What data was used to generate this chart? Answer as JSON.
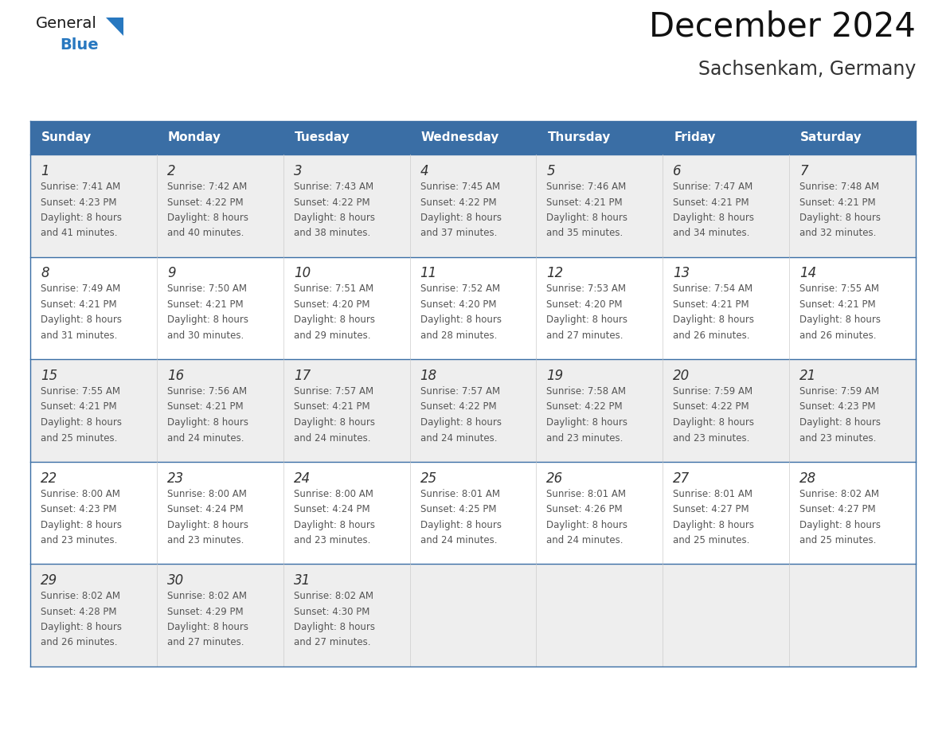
{
  "title": "December 2024",
  "subtitle": "Sachsenkam, Germany",
  "days_of_week": [
    "Sunday",
    "Monday",
    "Tuesday",
    "Wednesday",
    "Thursday",
    "Friday",
    "Saturday"
  ],
  "header_bg_color": "#3a6ea5",
  "header_text_color": "#ffffff",
  "cell_bg_light": "#eeeeee",
  "cell_bg_white": "#ffffff",
  "cell_border_color": "#3a6ea5",
  "day_num_color": "#333333",
  "text_color": "#555555",
  "title_color": "#111111",
  "subtitle_color": "#333333",
  "logo_general_color": "#1a1a1a",
  "logo_blue_color": "#2878c0",
  "logo_triangle_color": "#2878c0",
  "weeks": [
    {
      "days": [
        {
          "date": 1,
          "sunrise": "7:41 AM",
          "sunset": "4:23 PM",
          "daylight_h": "8 hours",
          "daylight_m": "41 minutes."
        },
        {
          "date": 2,
          "sunrise": "7:42 AM",
          "sunset": "4:22 PM",
          "daylight_h": "8 hours",
          "daylight_m": "40 minutes."
        },
        {
          "date": 3,
          "sunrise": "7:43 AM",
          "sunset": "4:22 PM",
          "daylight_h": "8 hours",
          "daylight_m": "38 minutes."
        },
        {
          "date": 4,
          "sunrise": "7:45 AM",
          "sunset": "4:22 PM",
          "daylight_h": "8 hours",
          "daylight_m": "37 minutes."
        },
        {
          "date": 5,
          "sunrise": "7:46 AM",
          "sunset": "4:21 PM",
          "daylight_h": "8 hours",
          "daylight_m": "35 minutes."
        },
        {
          "date": 6,
          "sunrise": "7:47 AM",
          "sunset": "4:21 PM",
          "daylight_h": "8 hours",
          "daylight_m": "34 minutes."
        },
        {
          "date": 7,
          "sunrise": "7:48 AM",
          "sunset": "4:21 PM",
          "daylight_h": "8 hours",
          "daylight_m": "32 minutes."
        }
      ]
    },
    {
      "days": [
        {
          "date": 8,
          "sunrise": "7:49 AM",
          "sunset": "4:21 PM",
          "daylight_h": "8 hours",
          "daylight_m": "31 minutes."
        },
        {
          "date": 9,
          "sunrise": "7:50 AM",
          "sunset": "4:21 PM",
          "daylight_h": "8 hours",
          "daylight_m": "30 minutes."
        },
        {
          "date": 10,
          "sunrise": "7:51 AM",
          "sunset": "4:20 PM",
          "daylight_h": "8 hours",
          "daylight_m": "29 minutes."
        },
        {
          "date": 11,
          "sunrise": "7:52 AM",
          "sunset": "4:20 PM",
          "daylight_h": "8 hours",
          "daylight_m": "28 minutes."
        },
        {
          "date": 12,
          "sunrise": "7:53 AM",
          "sunset": "4:20 PM",
          "daylight_h": "8 hours",
          "daylight_m": "27 minutes."
        },
        {
          "date": 13,
          "sunrise": "7:54 AM",
          "sunset": "4:21 PM",
          "daylight_h": "8 hours",
          "daylight_m": "26 minutes."
        },
        {
          "date": 14,
          "sunrise": "7:55 AM",
          "sunset": "4:21 PM",
          "daylight_h": "8 hours",
          "daylight_m": "26 minutes."
        }
      ]
    },
    {
      "days": [
        {
          "date": 15,
          "sunrise": "7:55 AM",
          "sunset": "4:21 PM",
          "daylight_h": "8 hours",
          "daylight_m": "25 minutes."
        },
        {
          "date": 16,
          "sunrise": "7:56 AM",
          "sunset": "4:21 PM",
          "daylight_h": "8 hours",
          "daylight_m": "24 minutes."
        },
        {
          "date": 17,
          "sunrise": "7:57 AM",
          "sunset": "4:21 PM",
          "daylight_h": "8 hours",
          "daylight_m": "24 minutes."
        },
        {
          "date": 18,
          "sunrise": "7:57 AM",
          "sunset": "4:22 PM",
          "daylight_h": "8 hours",
          "daylight_m": "24 minutes."
        },
        {
          "date": 19,
          "sunrise": "7:58 AM",
          "sunset": "4:22 PM",
          "daylight_h": "8 hours",
          "daylight_m": "23 minutes."
        },
        {
          "date": 20,
          "sunrise": "7:59 AM",
          "sunset": "4:22 PM",
          "daylight_h": "8 hours",
          "daylight_m": "23 minutes."
        },
        {
          "date": 21,
          "sunrise": "7:59 AM",
          "sunset": "4:23 PM",
          "daylight_h": "8 hours",
          "daylight_m": "23 minutes."
        }
      ]
    },
    {
      "days": [
        {
          "date": 22,
          "sunrise": "8:00 AM",
          "sunset": "4:23 PM",
          "daylight_h": "8 hours",
          "daylight_m": "23 minutes."
        },
        {
          "date": 23,
          "sunrise": "8:00 AM",
          "sunset": "4:24 PM",
          "daylight_h": "8 hours",
          "daylight_m": "23 minutes."
        },
        {
          "date": 24,
          "sunrise": "8:00 AM",
          "sunset": "4:24 PM",
          "daylight_h": "8 hours",
          "daylight_m": "23 minutes."
        },
        {
          "date": 25,
          "sunrise": "8:01 AM",
          "sunset": "4:25 PM",
          "daylight_h": "8 hours",
          "daylight_m": "24 minutes."
        },
        {
          "date": 26,
          "sunrise": "8:01 AM",
          "sunset": "4:26 PM",
          "daylight_h": "8 hours",
          "daylight_m": "24 minutes."
        },
        {
          "date": 27,
          "sunrise": "8:01 AM",
          "sunset": "4:27 PM",
          "daylight_h": "8 hours",
          "daylight_m": "25 minutes."
        },
        {
          "date": 28,
          "sunrise": "8:02 AM",
          "sunset": "4:27 PM",
          "daylight_h": "8 hours",
          "daylight_m": "25 minutes."
        }
      ]
    },
    {
      "days": [
        {
          "date": 29,
          "sunrise": "8:02 AM",
          "sunset": "4:28 PM",
          "daylight_h": "8 hours",
          "daylight_m": "26 minutes."
        },
        {
          "date": 30,
          "sunrise": "8:02 AM",
          "sunset": "4:29 PM",
          "daylight_h": "8 hours",
          "daylight_m": "27 minutes."
        },
        {
          "date": 31,
          "sunrise": "8:02 AM",
          "sunset": "4:30 PM",
          "daylight_h": "8 hours",
          "daylight_m": "27 minutes."
        },
        null,
        null,
        null,
        null
      ]
    }
  ]
}
